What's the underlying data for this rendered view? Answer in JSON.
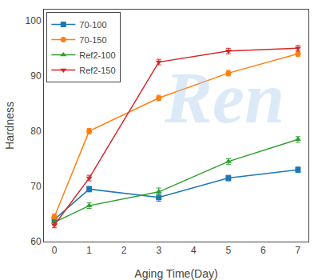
{
  "chart_data": {
    "type": "line",
    "x": [
      0,
      1,
      3,
      5,
      7
    ],
    "series": [
      {
        "name": "70-100",
        "marker": "square",
        "values": [
          64.0,
          69.5,
          68.0,
          71.5,
          73.0
        ],
        "errors": [
          0.5,
          0.5,
          0.7,
          0.5,
          0.5
        ]
      },
      {
        "name": "70-150",
        "marker": "circle",
        "values": [
          64.5,
          80.0,
          86.0,
          90.5,
          94.0
        ],
        "errors": [
          0.5,
          0.5,
          0.5,
          0.5,
          0.5
        ]
      },
      {
        "name": "Ref2-100",
        "marker": "triangle-up",
        "values": [
          63.5,
          66.5,
          69.0,
          74.5,
          78.5
        ],
        "errors": [
          0.5,
          0.5,
          0.7,
          0.5,
          0.5
        ]
      },
      {
        "name": "Ref2-150",
        "marker": "triangle-down",
        "values": [
          63.0,
          71.5,
          92.5,
          94.5,
          95.0
        ],
        "errors": [
          0.5,
          0.5,
          0.5,
          0.5,
          0.5
        ]
      }
    ],
    "xlabel": "Aging Time(Day)",
    "ylabel": "Hardness",
    "xlim": [
      -0.3,
      7.3
    ],
    "ylim": [
      60,
      102
    ],
    "xticks": [
      0,
      1,
      2,
      3,
      4,
      5,
      6,
      7
    ],
    "yticks": [
      60,
      70,
      80,
      90,
      100
    ],
    "grid": false,
    "legend": "upper left",
    "annotations": [
      {
        "text": "Ren",
        "color": "#aaccee"
      }
    ]
  }
}
